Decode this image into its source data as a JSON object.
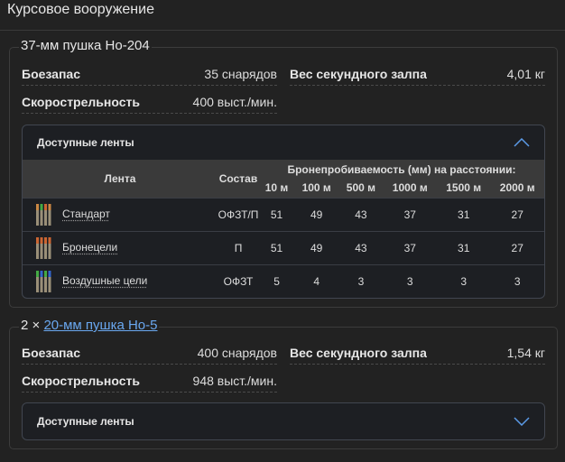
{
  "section_title": "Курсовое вооружение",
  "weapons": [
    {
      "legend": "37-мм пушка Ho-204",
      "legend_prefix": "",
      "ammo_label": "Боезапас",
      "ammo": "35 снарядов",
      "salvo_label": "Вес секундного залпа",
      "salvo": "4,01 кг",
      "rof_label": "Скорострельность",
      "rof": "400 выст./мин.",
      "belts_label": "Доступные ленты",
      "expanded": true
    },
    {
      "legend_prefix": "2 × ",
      "legend": "20-мм пушка Ho-5",
      "ammo_label": "Боезапас",
      "ammo": "400 снарядов",
      "salvo_label": "Вес секундного залпа",
      "salvo": "1,54 кг",
      "rof_label": "Скорострельность",
      "rof": "948 выст./мин.",
      "belts_label": "Доступные ленты",
      "expanded": false
    }
  ],
  "belts_table": {
    "col_belt": "Лента",
    "col_comp": "Состав",
    "col_pen": "Бронепробиваемость (мм) на расстоянии:",
    "distances": [
      "10 м",
      "100 м",
      "500 м",
      "1000 м",
      "1500 м",
      "2000 м"
    ],
    "rows": [
      {
        "name": "Стандарт",
        "comp": "ОФЗТ/П",
        "pen": [
          "51",
          "49",
          "43",
          "37",
          "31",
          "27"
        ],
        "tips": [
          "#c84",
          "#4a4",
          "#c63",
          "#c84"
        ]
      },
      {
        "name": "Бронецели",
        "comp": "П",
        "pen": [
          "51",
          "49",
          "43",
          "37",
          "31",
          "27"
        ],
        "tips": [
          "#c63",
          "#c63",
          "#c63",
          "#c63"
        ]
      },
      {
        "name": "Воздушные цели",
        "comp": "ОФЗТ",
        "pen": [
          "5",
          "4",
          "3",
          "3",
          "3",
          "3"
        ],
        "tips": [
          "#4a4",
          "#36c",
          "#4a4",
          "#36c"
        ]
      }
    ]
  },
  "colors": {
    "link": "#6aa8f0",
    "accent": "#5b9be8",
    "background": "#222222"
  }
}
